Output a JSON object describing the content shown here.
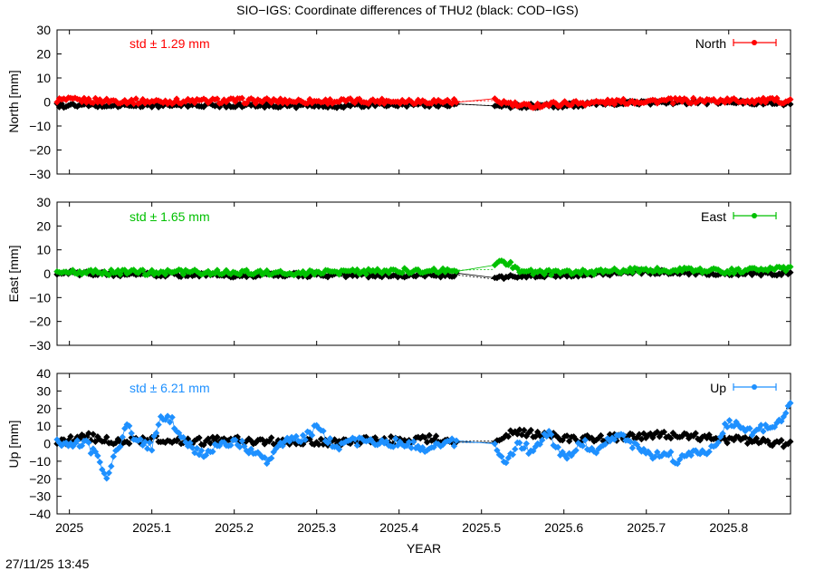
{
  "title": "SIO−IGS: Coordinate differences of THU2 (black: COD−IGS)",
  "timestamp": "27/11/25 13:45",
  "xlabel": "YEAR",
  "colors": {
    "reference": "#000000",
    "North": "#ff0000",
    "East": "#00c000",
    "Up": "#1e90ff"
  },
  "chart_data": [
    {
      "type": "line",
      "ylabel": "North [mm]",
      "legend": "North",
      "legend_position": "top-right",
      "std_label": "std ± 1.29 mm",
      "ylim": [
        -30,
        30
      ],
      "yticks": [
        "30",
        "20",
        "10",
        "0",
        "−10",
        "−20",
        "−30"
      ],
      "xlim": [
        2024.985,
        2025.875
      ],
      "xticks": [
        "2025",
        "2025.1",
        "2025.2",
        "2025.3",
        "2025.4",
        "2025.5",
        "2025.6",
        "2025.7",
        "2025.8"
      ],
      "gap": [
        2024.985,
        2025.472,
        2025.515,
        2025.875
      ],
      "series": [
        {
          "name": "SIO−IGS",
          "color": "#ff0000",
          "segments": [
            {
              "x": [
                2024.985,
                2025.1,
                2025.2,
                2025.3,
                2025.4,
                2025.472,
                2025.515,
                2025.55,
                2025.6,
                2025.7,
                2025.8,
                2025.875
              ],
              "y": [
                0.8,
                0.2,
                0.5,
                0.3,
                0.4,
                0.2,
                0.6,
                -1.8,
                -0.6,
                0.4,
                0.6,
                0.5
              ]
            }
          ]
        },
        {
          "name": "COD−IGS",
          "color": "#000000",
          "segments": [
            {
              "x": [
                2024.985,
                2025.1,
                2025.2,
                2025.3,
                2025.4,
                2025.472,
                2025.515,
                2025.55,
                2025.6,
                2025.7,
                2025.8,
                2025.875
              ],
              "y": [
                -1.5,
                -1.4,
                -1.3,
                -1.6,
                -1.2,
                -1.0,
                -1.5,
                -1.8,
                -1.4,
                -0.2,
                -0.1,
                -0.5
              ]
            }
          ]
        }
      ]
    },
    {
      "type": "line",
      "ylabel": "East [mm]",
      "legend": "East",
      "legend_position": "top-right",
      "std_label": "std ± 1.65 mm",
      "ylim": [
        -30,
        30
      ],
      "yticks": [
        "30",
        "20",
        "10",
        "0",
        "−10",
        "−20",
        "−30"
      ],
      "xlim": [
        2024.985,
        2025.875
      ],
      "xticks": [
        "2025",
        "2025.1",
        "2025.2",
        "2025.3",
        "2025.4",
        "2025.5",
        "2025.6",
        "2025.7",
        "2025.8"
      ],
      "gap": [
        2024.985,
        2025.472,
        2025.515,
        2025.875
      ],
      "series": [
        {
          "name": "SIO−IGS",
          "color": "#00c000",
          "segments": [
            {
              "x": [
                2024.985,
                2025.1,
                2025.2,
                2025.3,
                2025.4,
                2025.472,
                2025.515,
                2025.522,
                2025.55,
                2025.6,
                2025.7,
                2025.8,
                2025.875
              ],
              "y": [
                0.4,
                0.6,
                0.5,
                0.3,
                1.2,
                1.5,
                1.8,
                6.5,
                0.8,
                0.2,
                1.8,
                1.2,
                2.2
              ]
            }
          ]
        },
        {
          "name": "COD−IGS",
          "color": "#000000",
          "segments": [
            {
              "x": [
                2024.985,
                2025.1,
                2025.2,
                2025.3,
                2025.4,
                2025.472,
                2025.515,
                2025.55,
                2025.6,
                2025.7,
                2025.8,
                2025.875
              ],
              "y": [
                0.3,
                -0.3,
                -0.6,
                -0.5,
                -0.8,
                -0.6,
                -2.2,
                -0.8,
                -0.5,
                0.8,
                0.2,
                0.2
              ]
            }
          ]
        }
      ]
    },
    {
      "type": "line",
      "ylabel": "Up [mm]",
      "legend": "Up",
      "legend_position": "top-right",
      "std_label": "std ± 6.21 mm",
      "ylim": [
        -40,
        40
      ],
      "yticks": [
        "40",
        "30",
        "20",
        "10",
        "0",
        "−10",
        "−20",
        "−30",
        "−40"
      ],
      "xlim": [
        2024.985,
        2025.875
      ],
      "xticks": [
        "2025",
        "2025.1",
        "2025.2",
        "2025.3",
        "2025.4",
        "2025.5",
        "2025.6",
        "2025.7",
        "2025.8"
      ],
      "gap": [
        2024.985,
        2025.472,
        2025.515,
        2025.875
      ],
      "series": [
        {
          "name": "SIO−IGS",
          "color": "#1e90ff",
          "segments": [
            {
              "x": [
                2024.985,
                2025.0,
                2025.02,
                2025.035,
                2025.045,
                2025.055,
                2025.07,
                2025.085,
                2025.1,
                2025.11,
                2025.12,
                2025.14,
                2025.16,
                2025.2,
                2025.24,
                2025.26,
                2025.28,
                2025.3,
                2025.32,
                2025.34,
                2025.37,
                2025.4,
                2025.43,
                2025.46,
                2025.472,
                2025.515,
                2025.53,
                2025.545,
                2025.56,
                2025.58,
                2025.6,
                2025.62,
                2025.64,
                2025.66,
                2025.68,
                2025.7,
                2025.72,
                2025.74,
                2025.76,
                2025.78,
                2025.8,
                2025.82,
                2025.84,
                2025.86,
                2025.87
              ],
              "y": [
                1.5,
                -1.5,
                0.5,
                -8.5,
                -20.5,
                -6.5,
                10,
                0.5,
                -2,
                14,
                16,
                0.5,
                -6,
                1.5,
                -9.5,
                1.5,
                2.5,
                9,
                -1.5,
                0.5,
                2,
                0.5,
                -2.5,
                0.5,
                0.5,
                0.5,
                -11.5,
                1,
                -4.5,
                7,
                -8.5,
                0.5,
                -3.5,
                4.5,
                1,
                -7,
                -4.5,
                -10,
                -5,
                -2.5,
                12.5,
                6.5,
                8,
                10,
                20.5
              ]
            }
          ]
        },
        {
          "name": "COD−IGS",
          "color": "#000000",
          "segments": [
            {
              "x": [
                2024.985,
                2025.02,
                2025.06,
                2025.1,
                2025.14,
                2025.2,
                2025.25,
                2025.3,
                2025.35,
                2025.4,
                2025.44,
                2025.472,
                2025.515,
                2025.54,
                2025.58,
                2025.62,
                2025.66,
                2025.7,
                2025.74,
                2025.78,
                2025.82,
                2025.86,
                2025.875
              ],
              "y": [
                1,
                4,
                1.5,
                2.5,
                1,
                2,
                1.5,
                1,
                1.5,
                2,
                3,
                1.5,
                1.5,
                7,
                4.5,
                2.5,
                3.5,
                4.5,
                5,
                3,
                1.5,
                0.5,
                -0.5
              ]
            }
          ]
        }
      ]
    }
  ]
}
